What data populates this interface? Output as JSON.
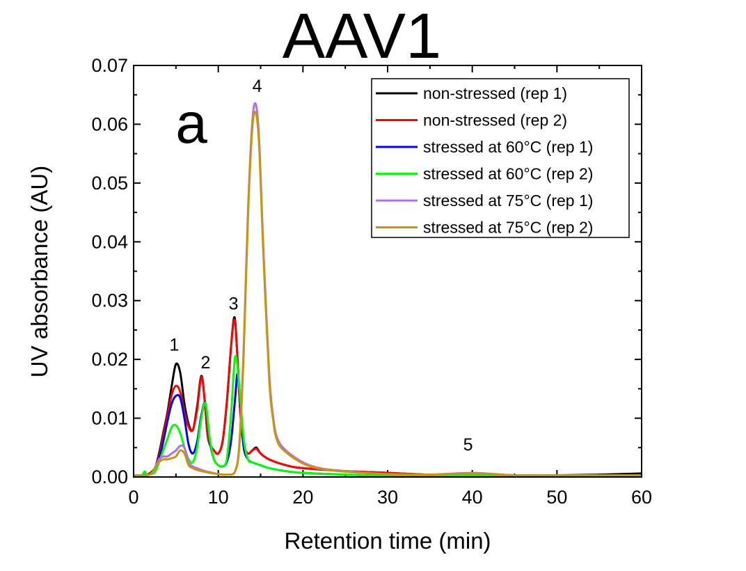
{
  "chart_data": {
    "type": "line",
    "title": "AAV1",
    "panel_label": "a",
    "xlabel": "Retention time (min)",
    "ylabel": "UV absorbance (AU)",
    "xlim": [
      0,
      60
    ],
    "ylim": [
      0,
      0.07
    ],
    "xticks": [
      "0",
      "10",
      "20",
      "30",
      "40",
      "50",
      "60"
    ],
    "yticks": [
      "0.00",
      "0.01",
      "0.02",
      "0.03",
      "0.04",
      "0.05",
      "0.06",
      "0.07"
    ],
    "legend_position": "top-right",
    "peak_labels": [
      {
        "text": "1",
        "x": 4.8,
        "y": 0.0215
      },
      {
        "text": "2",
        "x": 8.5,
        "y": 0.0185
      },
      {
        "text": "3",
        "x": 11.8,
        "y": 0.0285
      },
      {
        "text": "4",
        "x": 14.6,
        "y": 0.0655
      },
      {
        "text": "5",
        "x": 39.5,
        "y": 0.0045
      }
    ],
    "series": [
      {
        "name": "non-stressed (rep 1)",
        "legend_label": "non-stressed (rep 1)",
        "color": "#000000",
        "x": [
          0,
          1,
          1.3,
          1.6,
          2.5,
          3.0,
          3.5,
          4.0,
          4.5,
          5.0,
          5.5,
          6.0,
          6.5,
          7.0,
          7.5,
          8.0,
          8.4,
          8.8,
          9.5,
          10.0,
          10.5,
          11.0,
          11.5,
          11.9,
          12.2,
          12.6,
          13.0,
          13.5,
          14.0,
          14.5,
          15.0,
          16,
          18,
          20,
          25,
          30,
          35,
          40,
          45,
          50,
          55,
          60
        ],
        "y": [
          0.0003,
          0.0003,
          0.0009,
          0.0004,
          0.0015,
          0.004,
          0.0075,
          0.011,
          0.0155,
          0.0192,
          0.0178,
          0.0125,
          0.009,
          0.008,
          0.012,
          0.0172,
          0.013,
          0.0065,
          0.0045,
          0.004,
          0.006,
          0.0125,
          0.022,
          0.0272,
          0.022,
          0.011,
          0.0055,
          0.004,
          0.0045,
          0.005,
          0.004,
          0.003,
          0.002,
          0.0015,
          0.001,
          0.0007,
          0.0004,
          0.0004,
          0.0003,
          0.0003,
          0.0004,
          0.0006
        ]
      },
      {
        "name": "non-stressed (rep 2)",
        "legend_label": "non-stressed (rep 2)",
        "color": "#ff0000",
        "x": [
          0,
          1,
          1.3,
          1.6,
          2.5,
          3.0,
          3.5,
          4.0,
          4.5,
          5.0,
          5.5,
          6.0,
          6.5,
          7.0,
          7.5,
          8.0,
          8.4,
          8.8,
          9.5,
          10.0,
          10.5,
          11.0,
          11.5,
          11.9,
          12.2,
          12.6,
          13.0,
          13.5,
          14.0,
          14.5,
          15.0,
          16,
          18,
          20,
          25,
          30,
          35,
          40,
          45,
          50,
          55,
          60
        ],
        "y": [
          0.0003,
          0.0003,
          0.0009,
          0.0004,
          0.0013,
          0.0035,
          0.007,
          0.0105,
          0.014,
          0.0155,
          0.0145,
          0.011,
          0.0085,
          0.008,
          0.0115,
          0.017,
          0.013,
          0.0065,
          0.0045,
          0.004,
          0.006,
          0.0125,
          0.022,
          0.0268,
          0.022,
          0.011,
          0.0055,
          0.004,
          0.0045,
          0.0048,
          0.004,
          0.003,
          0.002,
          0.0015,
          0.001,
          0.0007,
          0.0004,
          0.0006,
          0.0003,
          0.0003,
          0.0003,
          0.0003
        ]
      },
      {
        "name": "stressed at 60°C (rep 1)",
        "legend_label": "stressed at 60°C (rep 1)",
        "color": "#0000ff",
        "x": [
          0,
          1,
          1.3,
          1.6,
          2.5,
          3.0,
          3.5,
          4.0,
          4.5,
          5.0,
          5.5,
          6.0,
          6.5,
          7.0,
          7.5,
          8.0,
          8.5,
          9.0,
          9.5,
          10.0,
          10.5,
          11.0,
          11.5,
          12.0,
          12.3,
          12.7,
          13.0,
          13.5,
          14.0,
          15.0,
          16,
          18,
          20,
          25,
          30,
          35,
          40,
          45,
          50,
          55,
          60
        ],
        "y": [
          0.0003,
          0.0003,
          0.0009,
          0.0004,
          0.001,
          0.003,
          0.006,
          0.0095,
          0.0125,
          0.0138,
          0.0135,
          0.01,
          0.0055,
          0.004,
          0.006,
          0.0105,
          0.0125,
          0.006,
          0.003,
          0.002,
          0.0018,
          0.0025,
          0.006,
          0.0135,
          0.0175,
          0.011,
          0.005,
          0.003,
          0.0025,
          0.002,
          0.0015,
          0.001,
          0.0007,
          0.0004,
          0.0002,
          0.0002,
          0.0003,
          0.0002,
          0.0002,
          0.0002,
          0.0002
        ]
      },
      {
        "name": "stressed at 60°C (rep 2)",
        "legend_label": "stressed at 60°C (rep 2)",
        "color": "#00ff00",
        "x": [
          0,
          1,
          1.3,
          1.6,
          2.5,
          3.0,
          3.5,
          4.0,
          4.5,
          5.0,
          5.5,
          6.0,
          6.5,
          7.0,
          7.5,
          8.0,
          8.5,
          9.0,
          9.5,
          10.0,
          10.5,
          11.0,
          11.5,
          12.0,
          12.5,
          13.0,
          13.5,
          14.0,
          15.0,
          16,
          18,
          20,
          25,
          30,
          35,
          40,
          45,
          50,
          55,
          60
        ],
        "y": [
          0.0003,
          0.0003,
          0.0009,
          0.0004,
          0.0008,
          0.0025,
          0.0045,
          0.0065,
          0.0085,
          0.0088,
          0.0075,
          0.005,
          0.003,
          0.0025,
          0.005,
          0.01,
          0.0125,
          0.0065,
          0.003,
          0.002,
          0.0018,
          0.003,
          0.0105,
          0.0205,
          0.015,
          0.0065,
          0.003,
          0.0025,
          0.002,
          0.0015,
          0.001,
          0.0007,
          0.0004,
          0.0002,
          0.0002,
          0.0003,
          0.0002,
          0.0002,
          0.0002,
          0.0002
        ]
      },
      {
        "name": "stressed at 75°C (rep 1)",
        "legend_label": "stressed at 75°C (rep 1)",
        "color": "#b070ee",
        "x": [
          0,
          1,
          1.5,
          2.0,
          2.5,
          3.0,
          3.5,
          4.0,
          4.5,
          5.0,
          5.5,
          6.0,
          6.5,
          7.0,
          7.5,
          8.0,
          9.0,
          10.0,
          11.0,
          12.0,
          12.5,
          13.0,
          13.5,
          14.0,
          14.4,
          14.8,
          15.3,
          16.0,
          16.5,
          17.0,
          18,
          20,
          22,
          25,
          30,
          35,
          40,
          45,
          50,
          55,
          60
        ],
        "y": [
          0.0003,
          0.0003,
          0.0003,
          0.0005,
          0.0015,
          0.003,
          0.0035,
          0.0035,
          0.004,
          0.0045,
          0.0053,
          0.005,
          0.0025,
          0.0018,
          0.0015,
          0.0012,
          0.0008,
          0.0005,
          0.0004,
          0.001,
          0.006,
          0.022,
          0.045,
          0.06,
          0.0635,
          0.058,
          0.04,
          0.018,
          0.01,
          0.0065,
          0.0045,
          0.0025,
          0.0015,
          0.001,
          0.0005,
          0.0004,
          0.0007,
          0.0003,
          0.0003,
          0.0003,
          0.0003
        ]
      },
      {
        "name": "stressed at 75°C (rep 2)",
        "legend_label": "stressed at 75°C (rep 2)",
        "color": "#c8960c",
        "x": [
          0,
          1,
          1.5,
          2.0,
          2.5,
          3.0,
          3.5,
          4.0,
          4.5,
          5.0,
          5.5,
          6.0,
          6.5,
          7.0,
          7.5,
          8.0,
          9.0,
          10.0,
          11.0,
          12.0,
          12.5,
          13.0,
          13.5,
          14.0,
          14.4,
          14.8,
          15.3,
          16.0,
          16.5,
          17.0,
          18,
          20,
          22,
          25,
          30,
          35,
          40,
          45,
          50,
          55,
          60
        ],
        "y": [
          0.0003,
          0.0003,
          0.0003,
          0.0005,
          0.0013,
          0.0025,
          0.003,
          0.003,
          0.0032,
          0.0035,
          0.0045,
          0.004,
          0.002,
          0.0015,
          0.0012,
          0.001,
          0.0007,
          0.0005,
          0.0004,
          0.001,
          0.0055,
          0.021,
          0.044,
          0.059,
          0.062,
          0.057,
          0.039,
          0.017,
          0.0095,
          0.006,
          0.0042,
          0.0023,
          0.0014,
          0.0009,
          0.0005,
          0.0004,
          0.0006,
          0.0003,
          0.0003,
          0.0003,
          0.0003
        ]
      }
    ]
  }
}
